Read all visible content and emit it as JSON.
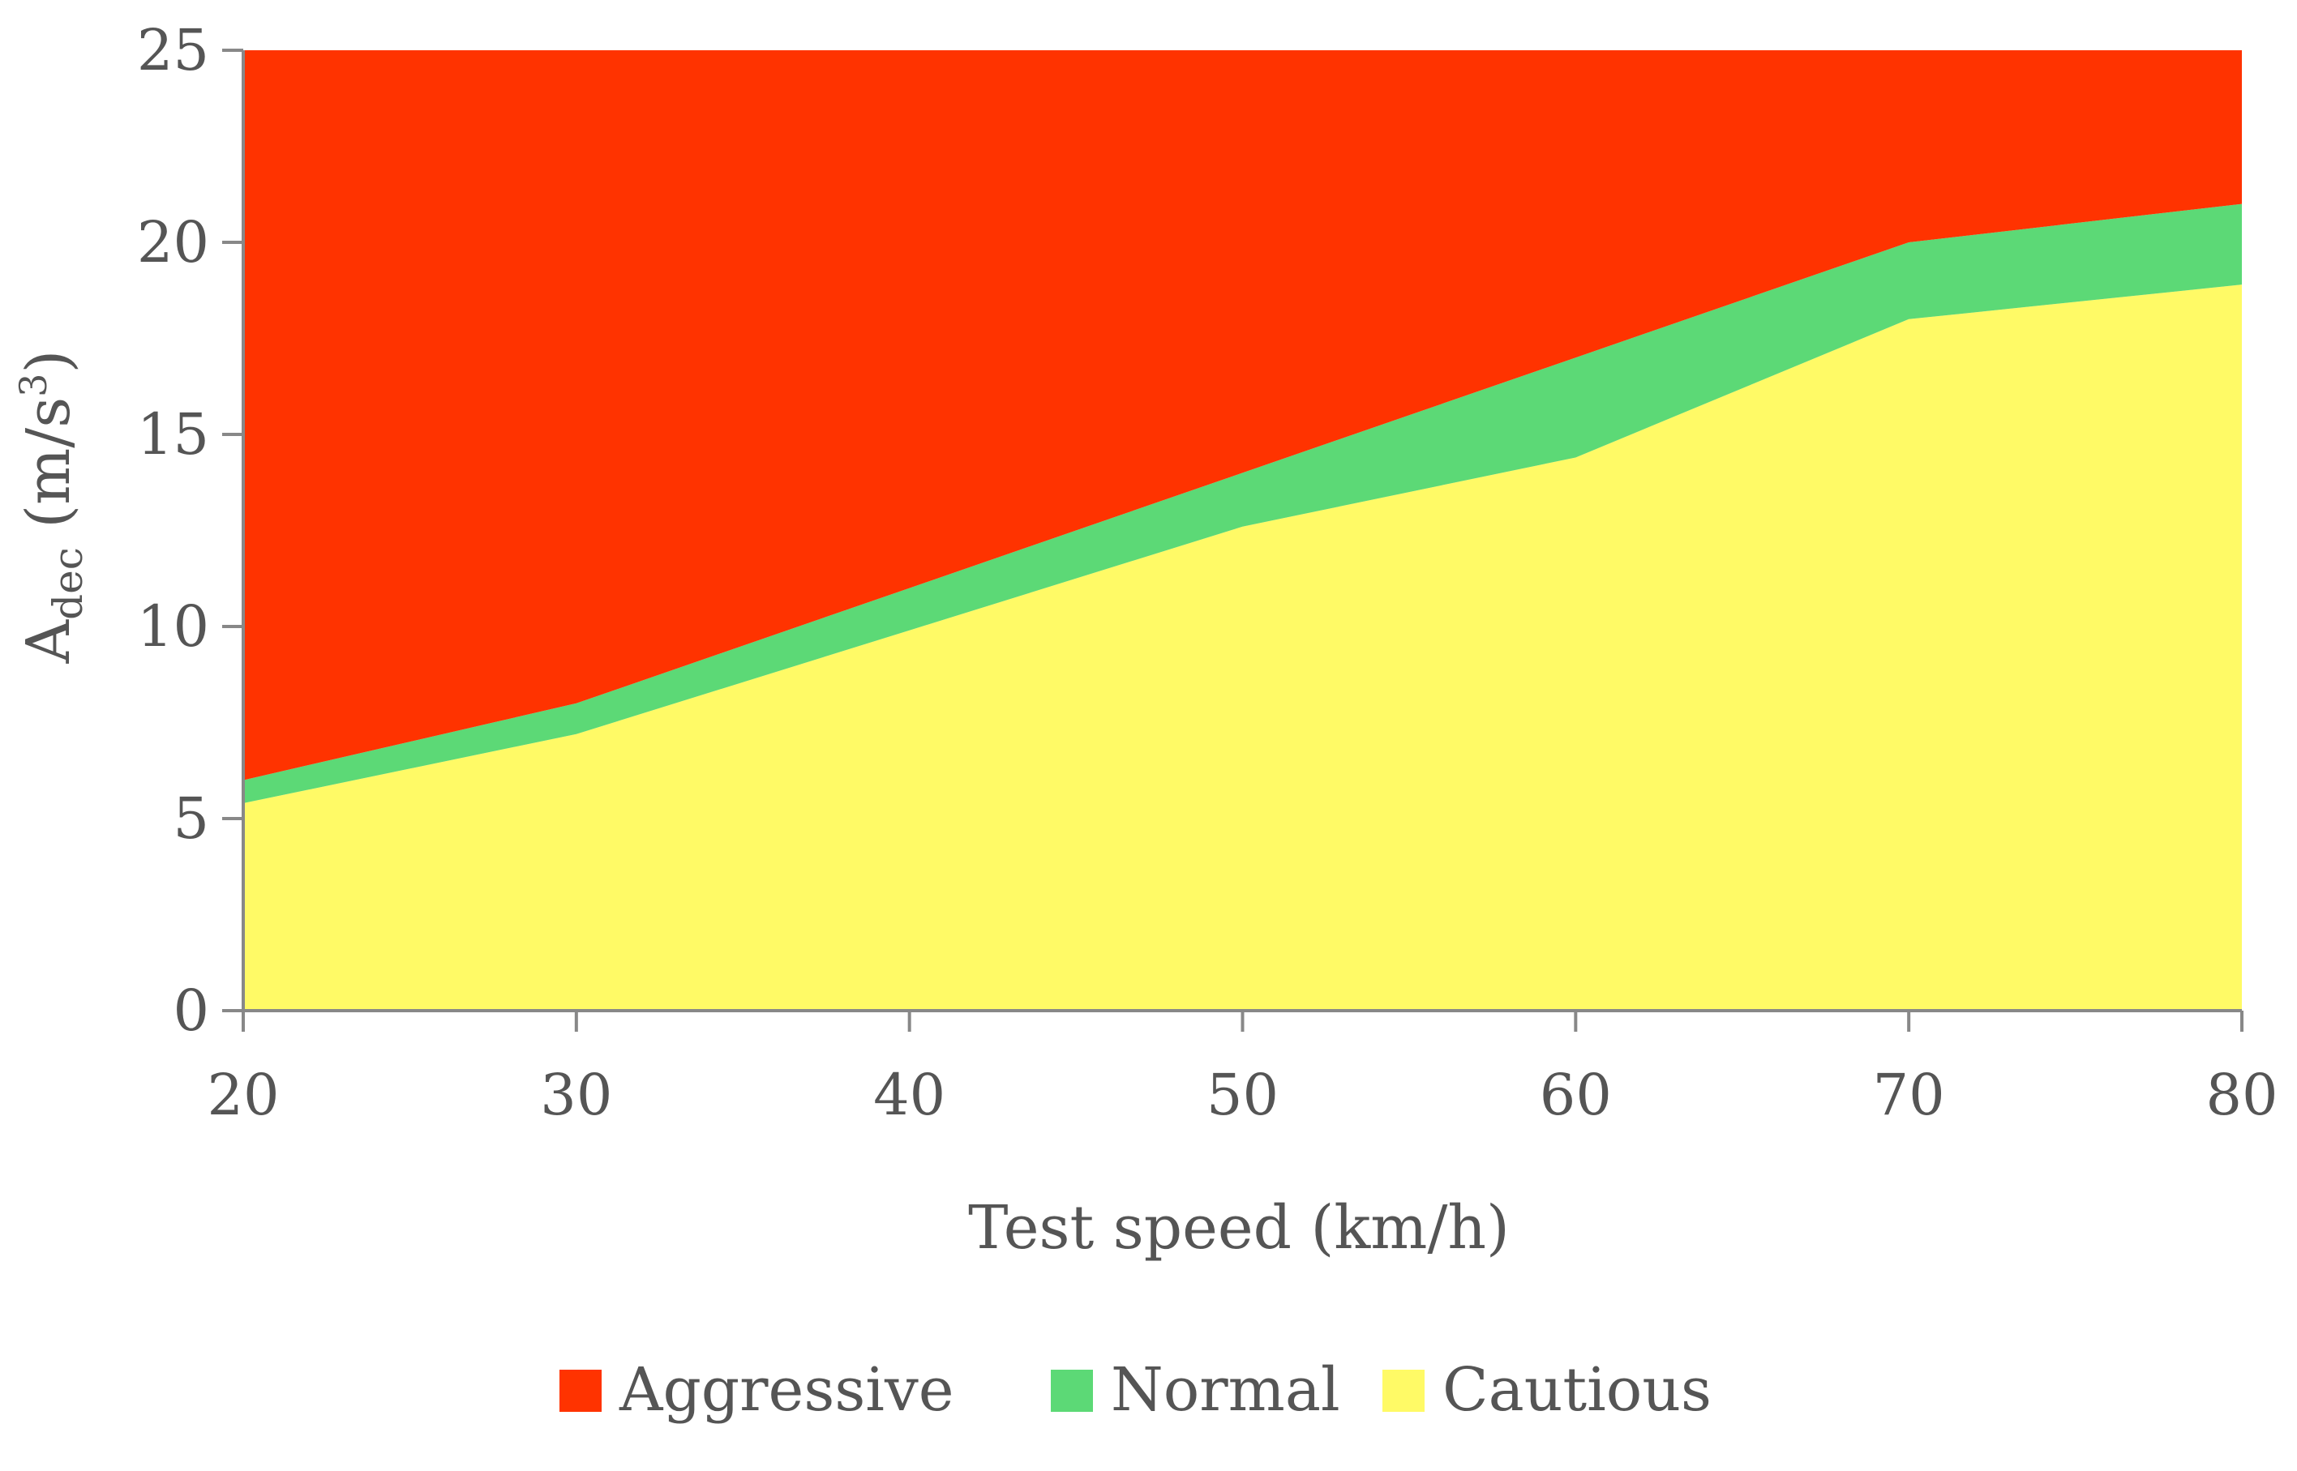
{
  "chart_data": {
    "type": "area",
    "stacked": true,
    "title": "",
    "xlabel": "Test speed (km/h)",
    "ylabel": {
      "main": "A",
      "sub": "dec",
      "unit_open": " (m/s",
      "unit_sup": "3",
      "unit_close": ")"
    },
    "x": [
      20,
      30,
      40,
      50,
      60,
      70,
      80
    ],
    "xlim": [
      20,
      80
    ],
    "ylim": [
      0,
      25
    ],
    "x_ticks": [
      20,
      30,
      40,
      50,
      60,
      70,
      80
    ],
    "y_ticks": [
      0,
      5,
      10,
      15,
      20,
      25
    ],
    "grid": false,
    "legend_position": "bottom",
    "series": [
      {
        "name": "Cautious",
        "color": "#FFFA66",
        "upper_bound": [
          5.4,
          7.2,
          9.9,
          12.6,
          14.4,
          18.0,
          18.9
        ]
      },
      {
        "name": "Normal",
        "color": "#5CD976",
        "upper_bound": [
          6.0,
          8.0,
          11.0,
          14.0,
          17.0,
          20.0,
          21.0
        ]
      },
      {
        "name": "Aggressive",
        "color": "#FF3300",
        "upper_bound": [
          25,
          25,
          25,
          25,
          25,
          25,
          25
        ]
      }
    ],
    "legend": [
      "Aggressive",
      "Normal",
      "Cautious"
    ]
  }
}
